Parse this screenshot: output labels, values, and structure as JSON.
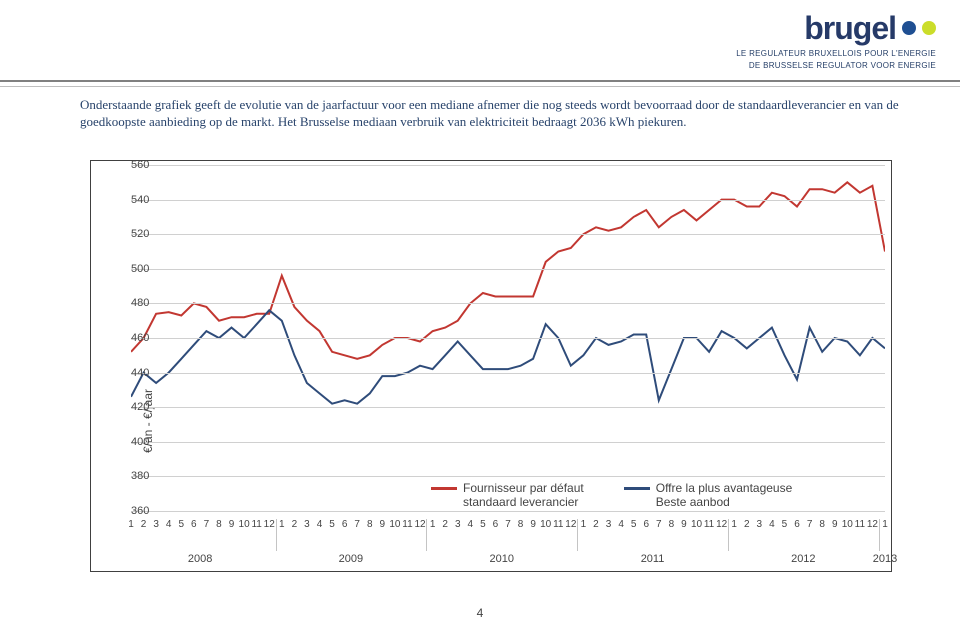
{
  "logo": {
    "brand": "brugel",
    "dot_colors": [
      "#1f4f92",
      "#cbdd2a"
    ],
    "tagline1": "LE REGULATEUR BRUXELLOIS POUR L'ENERGIE",
    "tagline2": "DE BRUSSELSE REGULATOR VOOR ENERGIE"
  },
  "intro": "Onderstaande grafiek geeft de evolutie van de jaarfactuur voor een mediane afnemer die nog steeds wordt bevoorraad door de standaardleverancier en van de goedkoopste aanbieding op de markt. Het Brusselse mediaan verbruik van elektriciteit bedraagt 2036 kWh piekuren.",
  "chart": {
    "type": "line",
    "y_axis_title": "€/an - €/jaar",
    "ylim": [
      360,
      560
    ],
    "ytick_step": 20,
    "yticks": [
      360,
      380,
      400,
      420,
      440,
      460,
      480,
      500,
      520,
      540,
      560
    ],
    "x_count": 61,
    "grid_color": "#d0d0d0",
    "border_color": "#404040",
    "background": "#ffffff",
    "series": [
      {
        "name": "default",
        "label_fr": "Fournisseur par défaut",
        "label_nl": "standaard leverancier",
        "color": "#c23731",
        "width": 2,
        "values": [
          452,
          460,
          474,
          475,
          473,
          480,
          478,
          470,
          472,
          472,
          474,
          474,
          496,
          478,
          470,
          464,
          452,
          450,
          448,
          450,
          456,
          460,
          460,
          458,
          464,
          466,
          470,
          480,
          486,
          484,
          484,
          484,
          484,
          504,
          510,
          512,
          520,
          524,
          522,
          524,
          530,
          534,
          524,
          530,
          534,
          528,
          534,
          540,
          540,
          536,
          536,
          544,
          542,
          536,
          546,
          546,
          544,
          550,
          544,
          548,
          510
        ]
      },
      {
        "name": "best",
        "label_fr": "Offre la plus avantageuse",
        "label_nl": "Beste aanbod",
        "color": "#2f4c7a",
        "width": 2,
        "values": [
          426,
          440,
          434,
          440,
          448,
          456,
          464,
          460,
          466,
          460,
          468,
          476,
          470,
          450,
          434,
          428,
          422,
          424,
          422,
          428,
          438,
          438,
          440,
          444,
          442,
          450,
          458,
          450,
          442,
          442,
          442,
          444,
          448,
          468,
          460,
          444,
          450,
          460,
          456,
          458,
          462,
          462,
          424,
          442,
          460,
          460,
          452,
          464,
          460,
          454,
          460,
          466,
          450,
          436,
          466,
          452,
          460,
          458,
          450,
          460,
          454
        ]
      }
    ],
    "legend": [
      {
        "color": "#c23731",
        "line1": "Fournisseur par défaut",
        "line2": "standaard leverancier"
      },
      {
        "color": "#2f4c7a",
        "line1": "Offre la plus avantageuse",
        "line2": "Beste aanbod"
      }
    ],
    "x_months": [
      "1",
      "2",
      "3",
      "4",
      "5",
      "6",
      "7",
      "8",
      "9",
      "10",
      "11",
      "12",
      "1",
      "2",
      "3",
      "4",
      "5",
      "6",
      "7",
      "8",
      "9",
      "10",
      "11",
      "12",
      "1",
      "2",
      "3",
      "4",
      "5",
      "6",
      "7",
      "8",
      "9",
      "10",
      "11",
      "12",
      "1",
      "2",
      "3",
      "4",
      "5",
      "6",
      "7",
      "8",
      "9",
      "10",
      "11",
      "12",
      "1",
      "2",
      "3",
      "4",
      "5",
      "6",
      "7",
      "8",
      "9",
      "10",
      "11",
      "12",
      "1"
    ],
    "years": [
      {
        "label": "2008",
        "start": 0,
        "end": 11
      },
      {
        "label": "2009",
        "start": 12,
        "end": 23
      },
      {
        "label": "2010",
        "start": 24,
        "end": 35
      },
      {
        "label": "2011",
        "start": 36,
        "end": 47
      },
      {
        "label": "2012",
        "start": 48,
        "end": 59
      },
      {
        "label": "2013",
        "start": 60,
        "end": 60
      }
    ],
    "label_fontsize": 11,
    "label_color": "#444444"
  },
  "page_number": "4"
}
